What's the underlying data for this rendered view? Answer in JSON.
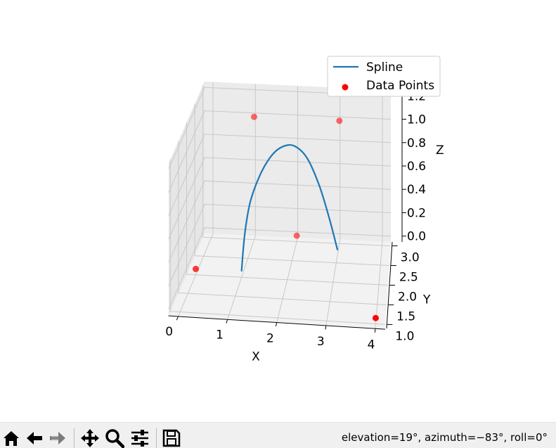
{
  "chart_data": {
    "type": "line",
    "title": "",
    "xlabel": "X",
    "ylabel": "Y",
    "zlabel": "Z",
    "xlim": [
      -0.2,
      4.2
    ],
    "ylim": [
      0.9,
      3.1
    ],
    "zlim": [
      -0.05,
      1.25
    ],
    "x_ticks": [
      "0",
      "1",
      "2",
      "3",
      "4"
    ],
    "y_ticks": [
      "1.0",
      "1.5",
      "2.0",
      "2.5",
      "3.0"
    ],
    "z_ticks": [
      "0.0",
      "0.2",
      "0.4",
      "0.6",
      "0.8",
      "1.0",
      "1.2"
    ],
    "grid": true,
    "legend_position": "upper-right",
    "series": [
      {
        "name": "Spline",
        "kind": "line",
        "color": "#1f77b4",
        "x": [
          1.0,
          1.05,
          1.15,
          1.35,
          1.55,
          1.75,
          2.0,
          2.3,
          2.6,
          2.85,
          3.05
        ],
        "y": [
          2.0,
          2.08,
          2.18,
          2.32,
          2.48,
          2.62,
          2.72,
          2.72,
          2.62,
          2.48,
          2.35
        ],
        "z": [
          0.0,
          0.3,
          0.55,
          0.75,
          0.85,
          0.88,
          0.86,
          0.76,
          0.56,
          0.33,
          0.11
        ]
      },
      {
        "name": "Data Points",
        "kind": "scatter",
        "color": "#ff0000",
        "x": [
          0,
          1,
          2,
          3,
          4
        ],
        "y": [
          2,
          3,
          3,
          3,
          1
        ],
        "z": [
          0,
          1,
          0,
          1,
          0
        ]
      }
    ]
  },
  "toolbar": {
    "buttons": [
      {
        "name": "home-icon",
        "label": "Home"
      },
      {
        "name": "back-icon",
        "label": "Back"
      },
      {
        "name": "forward-icon",
        "label": "Forward"
      },
      {
        "name": "pan-icon",
        "label": "Pan"
      },
      {
        "name": "zoom-icon",
        "label": "Zoom"
      },
      {
        "name": "configure-icon",
        "label": "Configure subplots"
      },
      {
        "name": "save-icon",
        "label": "Save"
      }
    ],
    "status_text": "elevation=19°, azimuth=−83°, roll=0°"
  }
}
